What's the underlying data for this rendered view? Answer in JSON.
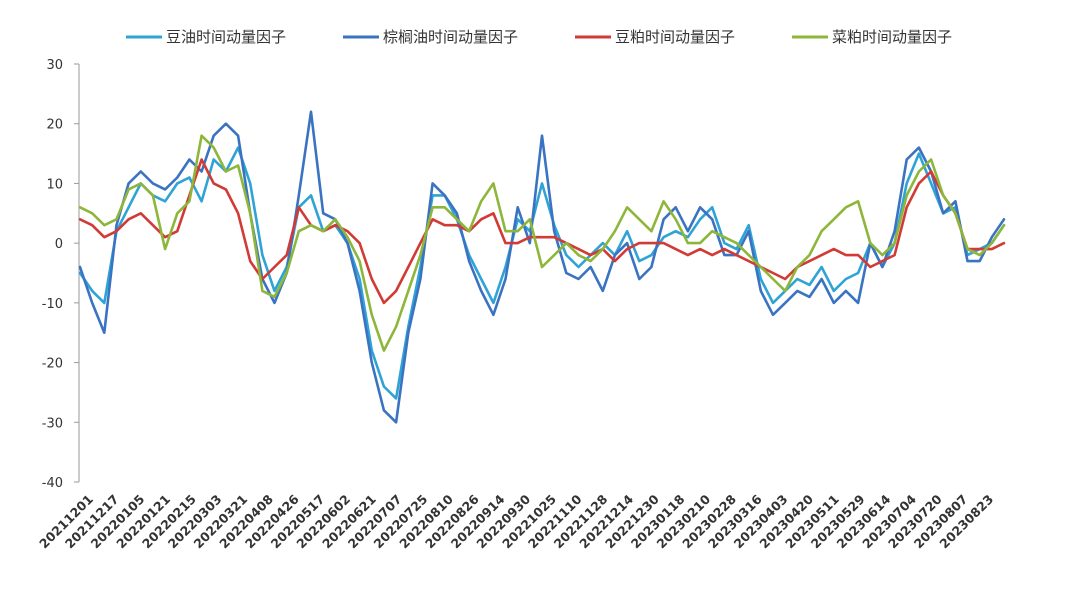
{
  "chart_data": {
    "type": "line",
    "title": "",
    "xlabel": "",
    "ylabel": "",
    "ylim": [
      -40,
      30
    ],
    "yticks": [
      30,
      20,
      10,
      0,
      -10,
      -20,
      -30,
      -40
    ],
    "ytick_labels": [
      "30",
      "20",
      "10",
      "0",
      "-10",
      "-20",
      "-30",
      "-40"
    ],
    "xtick_labels": [
      "20211201",
      "20211217",
      "20220105",
      "20220121",
      "20220215",
      "20220303",
      "20220321",
      "20220408",
      "20220426",
      "20220517",
      "20220602",
      "20220621",
      "20220707",
      "20220725",
      "20220810",
      "20220826",
      "20220914",
      "20220930",
      "20221025",
      "20221110",
      "20221128",
      "20221214",
      "20221230",
      "20230118",
      "20230210",
      "20230228",
      "20230316",
      "20230403",
      "20230420",
      "20230511",
      "20230529",
      "20230614",
      "20230704",
      "20230720",
      "20230807",
      "20230823"
    ],
    "grid": false,
    "legend_position": "top",
    "series": [
      {
        "name": "豆油时间动量因子",
        "color": "#2fa3d6",
        "values": [
          -5,
          -8,
          -10,
          2,
          6,
          10,
          8,
          7,
          10,
          11,
          7,
          14,
          12,
          16,
          10,
          -2,
          -8,
          -4,
          6,
          8,
          2,
          3,
          0,
          -6,
          -18,
          -24,
          -26,
          -14,
          -4,
          8,
          8,
          4,
          -2,
          -6,
          -10,
          -4,
          4,
          2,
          10,
          3,
          -2,
          -4,
          -2,
          0,
          -2,
          2,
          -3,
          -2,
          1,
          2,
          1,
          4,
          6,
          0,
          -1,
          3,
          -6,
          -10,
          -8,
          -6,
          -7,
          -4,
          -8,
          -6,
          -5,
          0,
          -4,
          0,
          10,
          15,
          10,
          5,
          6,
          -2,
          -1,
          0,
          3
        ]
      },
      {
        "name": "棕榈油时间动量因子",
        "color": "#3a73c2",
        "values": [
          -4,
          -10,
          -15,
          3,
          10,
          12,
          10,
          9,
          11,
          14,
          12,
          18,
          20,
          18,
          5,
          -6,
          -10,
          -5,
          8,
          22,
          5,
          4,
          0,
          -8,
          -20,
          -28,
          -30,
          -15,
          -6,
          10,
          8,
          5,
          -3,
          -8,
          -12,
          -6,
          6,
          0,
          18,
          2,
          -5,
          -6,
          -4,
          -8,
          -2,
          0,
          -6,
          -4,
          4,
          6,
          2,
          6,
          4,
          -2,
          -2,
          2,
          -8,
          -12,
          -10,
          -8,
          -9,
          -6,
          -10,
          -8,
          -10,
          0,
          -4,
          2,
          14,
          16,
          12,
          5,
          7,
          -3,
          -3,
          1,
          4
        ]
      },
      {
        "name": "豆粕时间动量因子",
        "color": "#d23a36",
        "values": [
          4,
          3,
          1,
          2,
          4,
          5,
          3,
          1,
          2,
          8,
          14,
          10,
          9,
          5,
          -3,
          -6,
          -4,
          -2,
          6,
          3,
          2,
          3,
          2,
          0,
          -6,
          -10,
          -8,
          -4,
          0,
          4,
          3,
          3,
          2,
          4,
          5,
          0,
          0,
          1,
          1,
          1,
          0,
          -1,
          -2,
          -1,
          -3,
          -1,
          0,
          0,
          0,
          -1,
          -2,
          -1,
          -2,
          -1,
          -2,
          -3,
          -4,
          -5,
          -6,
          -4,
          -3,
          -2,
          -1,
          -2,
          -2,
          -4,
          -3,
          -2,
          6,
          10,
          12,
          8,
          5,
          -1,
          -1,
          -1,
          0
        ]
      },
      {
        "name": "菜粕时间动量因子",
        "color": "#8db63a",
        "values": [
          6,
          5,
          3,
          4,
          9,
          10,
          8,
          -1,
          5,
          7,
          18,
          16,
          12,
          13,
          5,
          -8,
          -9,
          -5,
          2,
          3,
          2,
          4,
          1,
          -3,
          -12,
          -18,
          -14,
          -8,
          -2,
          6,
          6,
          4,
          2,
          7,
          10,
          2,
          2,
          4,
          -4,
          -2,
          0,
          -2,
          -3,
          -1,
          2,
          6,
          4,
          2,
          7,
          4,
          0,
          0,
          2,
          1,
          0,
          -2,
          -4,
          -6,
          -8,
          -4,
          -2,
          2,
          4,
          6,
          7,
          0,
          -2,
          0,
          8,
          12,
          14,
          8,
          5,
          -1,
          -2,
          0,
          3
        ]
      }
    ]
  }
}
